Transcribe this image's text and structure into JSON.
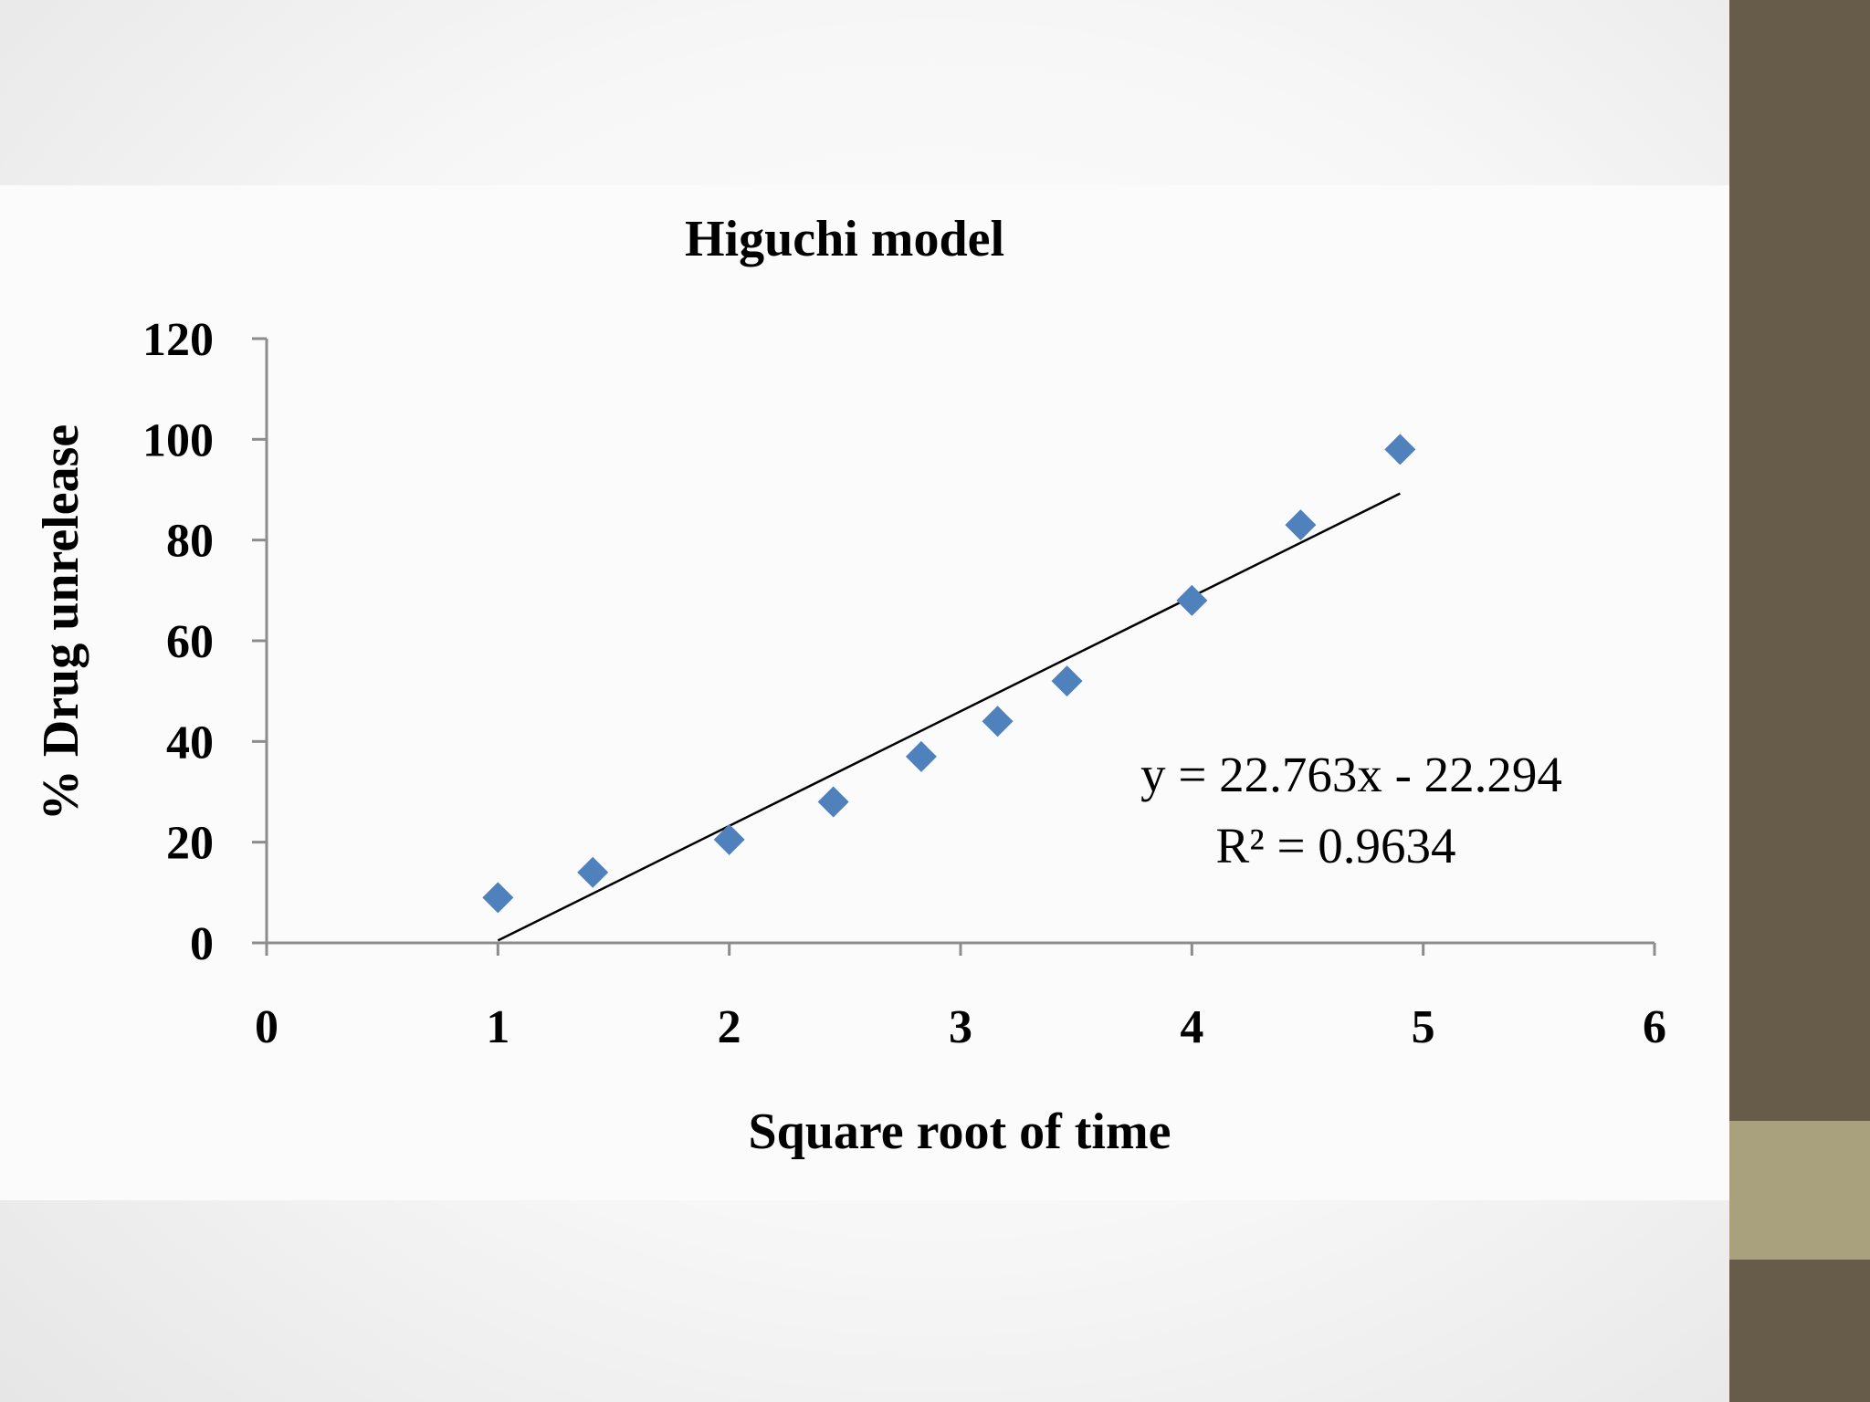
{
  "colors": {
    "sidebar": "#675b49",
    "sidebar_accent": "#a9a17e",
    "marker": "#4f81bd",
    "axis": "#8c8c8c",
    "trendline": "#000000"
  },
  "chart_data": {
    "type": "scatter",
    "title": "Higuchi model",
    "xlabel": "Square root of time",
    "ylabel": "% Drug unrelease",
    "xlim": [
      0,
      6
    ],
    "ylim": [
      0,
      120
    ],
    "xticks": [
      "0",
      "1",
      "2",
      "3",
      "4",
      "5",
      "6"
    ],
    "yticks": [
      "0",
      "20",
      "40",
      "60",
      "80",
      "100",
      "120"
    ],
    "grid": false,
    "legend": "none",
    "marker": "diamond",
    "points": [
      {
        "x": 1.0,
        "y": 9
      },
      {
        "x": 1.41,
        "y": 14
      },
      {
        "x": 2.0,
        "y": 20.5
      },
      {
        "x": 2.45,
        "y": 28
      },
      {
        "x": 2.83,
        "y": 37
      },
      {
        "x": 3.16,
        "y": 44
      },
      {
        "x": 3.46,
        "y": 52
      },
      {
        "x": 4.0,
        "y": 68
      },
      {
        "x": 4.47,
        "y": 83
      },
      {
        "x": 4.9,
        "y": 98
      }
    ],
    "trendline": {
      "slope": 22.763,
      "intercept": -22.294,
      "x_range": [
        1.0,
        4.9
      ],
      "equation_label": "y = 22.763x - 22.294",
      "r2_label": "R² = 0.9634"
    }
  }
}
